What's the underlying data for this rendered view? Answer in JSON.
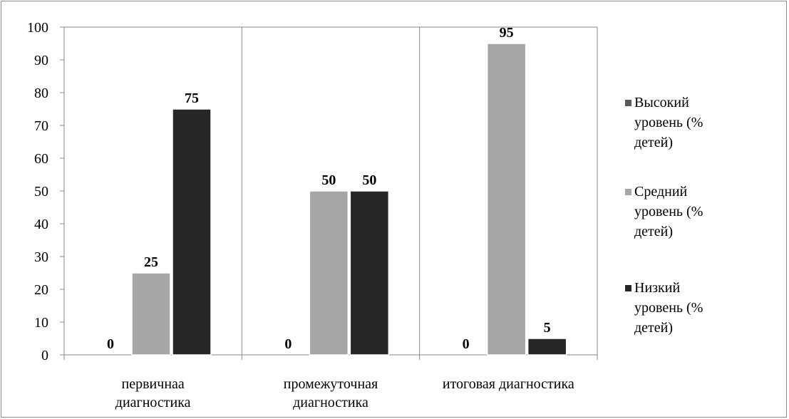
{
  "chart_data": {
    "type": "bar",
    "categories": [
      [
        "первичнаа",
        "диагностика"
      ],
      [
        "промежуточная",
        "диагностика"
      ],
      [
        "итоговая диагностика"
      ]
    ],
    "series": [
      {
        "name": [
          "Высокий",
          "уровень (%",
          "детей)"
        ],
        "color": "#595959",
        "values": [
          0,
          0,
          0
        ]
      },
      {
        "name": [
          "Средний",
          "уровень (%",
          "детей)"
        ],
        "color": "#a6a6a6",
        "values": [
          25,
          50,
          95
        ]
      },
      {
        "name": [
          "Низкий",
          "уровень (%",
          "детей)"
        ],
        "color": "#262626",
        "values": [
          75,
          50,
          5
        ]
      }
    ],
    "ylim": [
      0,
      100
    ],
    "yticks": [
      0,
      10,
      20,
      30,
      40,
      50,
      60,
      70,
      80,
      90,
      100
    ],
    "grid": "vertical category separators",
    "legend": "right"
  }
}
